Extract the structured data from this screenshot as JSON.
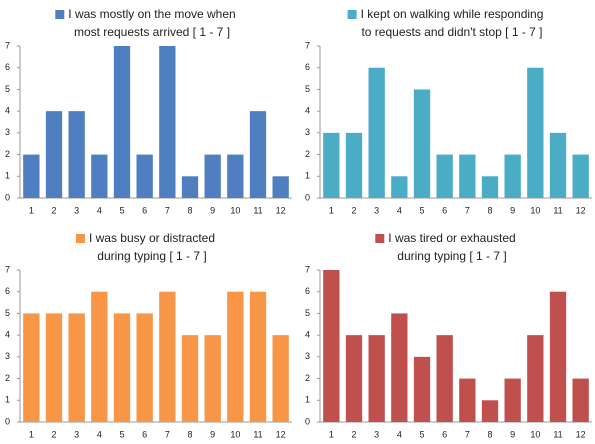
{
  "chart_data": [
    {
      "type": "bar",
      "title": [
        "I was mostly on the move when",
        "most requests arrived [ 1 - 7 ]"
      ],
      "color": "#4f7fc0",
      "categories": [
        1,
        2,
        3,
        4,
        5,
        6,
        7,
        8,
        9,
        10,
        11,
        12
      ],
      "values": [
        2,
        4,
        4,
        2,
        7,
        2,
        7,
        1,
        2,
        2,
        4,
        1
      ],
      "ylim": [
        0,
        7
      ],
      "yticks": [
        0,
        1,
        2,
        3,
        4,
        5,
        6,
        7
      ],
      "grid": false
    },
    {
      "type": "bar",
      "title": [
        "I kept on walking while responding",
        "to requests and didn't stop  [ 1 - 7 ]"
      ],
      "color": "#4bacc6",
      "categories": [
        1,
        2,
        3,
        4,
        5,
        6,
        7,
        8,
        9,
        10,
        11,
        12
      ],
      "values": [
        3,
        3,
        6,
        1,
        5,
        2,
        2,
        1,
        2,
        6,
        3,
        2
      ],
      "ylim": [
        0,
        7
      ],
      "yticks": [
        0,
        1,
        2,
        3,
        4,
        5,
        6,
        7
      ],
      "grid": false
    },
    {
      "type": "bar",
      "title": [
        "I was busy or distracted",
        "during typing [ 1 - 7 ]"
      ],
      "color": "#f79646",
      "categories": [
        1,
        2,
        3,
        4,
        5,
        6,
        7,
        8,
        9,
        10,
        11,
        12
      ],
      "values": [
        5,
        5,
        5,
        6,
        5,
        5,
        6,
        4,
        4,
        6,
        6,
        4
      ],
      "ylim": [
        0,
        7
      ],
      "yticks": [
        0,
        1,
        2,
        3,
        4,
        5,
        6,
        7
      ],
      "grid": false
    },
    {
      "type": "bar",
      "title": [
        "I was tired or exhausted",
        "during typing [ 1 - 7 ]"
      ],
      "color": "#c0504d",
      "categories": [
        1,
        2,
        3,
        4,
        5,
        6,
        7,
        8,
        9,
        10,
        11,
        12
      ],
      "values": [
        7,
        4,
        4,
        5,
        3,
        4,
        2,
        1,
        2,
        4,
        6,
        2
      ],
      "ylim": [
        0,
        7
      ],
      "yticks": [
        0,
        1,
        2,
        3,
        4,
        5,
        6,
        7
      ],
      "grid": false
    }
  ]
}
